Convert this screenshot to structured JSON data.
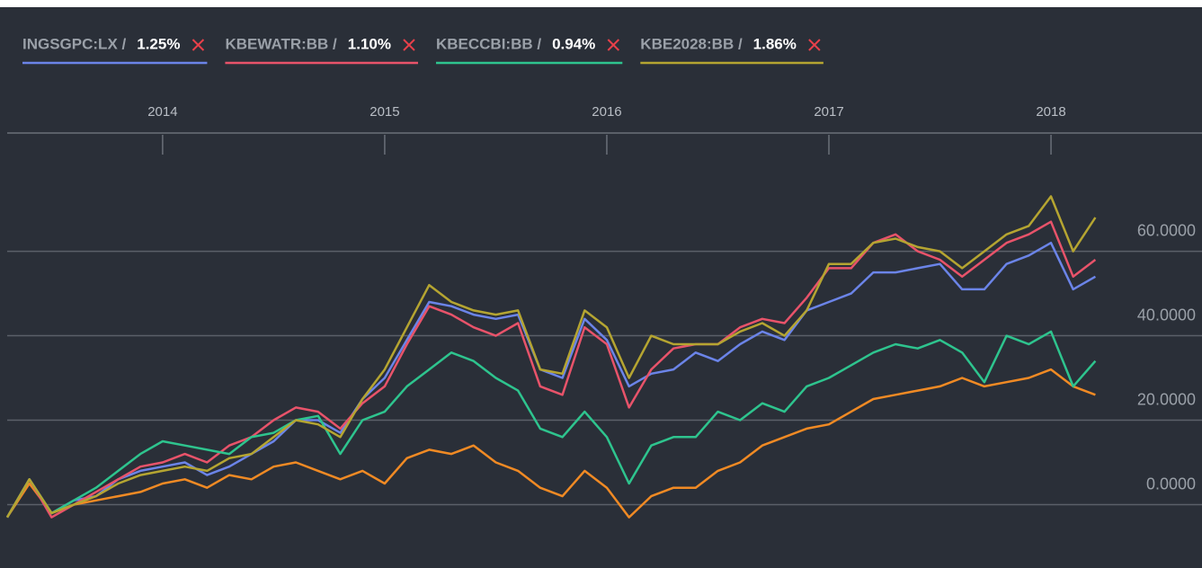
{
  "chart_data": {
    "type": "line",
    "x": [
      2013.3,
      2013.4,
      2013.5,
      2013.6,
      2013.7,
      2013.8,
      2013.9,
      2014.0,
      2014.1,
      2014.2,
      2014.3,
      2014.4,
      2014.5,
      2014.6,
      2014.7,
      2014.8,
      2014.9,
      2015.0,
      2015.1,
      2015.2,
      2015.3,
      2015.4,
      2015.5,
      2015.6,
      2015.7,
      2015.8,
      2015.9,
      2016.0,
      2016.1,
      2016.2,
      2016.3,
      2016.4,
      2016.5,
      2016.6,
      2016.7,
      2016.8,
      2016.9,
      2017.0,
      2017.1,
      2017.2,
      2017.3,
      2017.4,
      2017.5,
      2017.6,
      2017.7,
      2017.8,
      2017.9,
      2018.0,
      2018.1,
      2018.2
    ],
    "xlim": [
      2013.3,
      2018.85
    ],
    "xticks": [
      2014,
      2015,
      2016,
      2017,
      2018
    ],
    "ylim": [
      -15,
      88
    ],
    "yticks": [
      {
        "value": 0,
        "label": "0.0000"
      },
      {
        "value": 20,
        "label": "20.0000"
      },
      {
        "value": 40,
        "label": "40.0000"
      },
      {
        "value": 60,
        "label": "60.0000"
      }
    ],
    "grid": true,
    "series": [
      {
        "name": "INGSGPC:LX /",
        "change": "1.25%",
        "color": "#6b84e8",
        "values": [
          -3,
          6,
          -2,
          1,
          2,
          6,
          8,
          9,
          10,
          7,
          9,
          12,
          15,
          20,
          20,
          17,
          25,
          30,
          39,
          48,
          47,
          45,
          44,
          45,
          32,
          30,
          44,
          39,
          28,
          31,
          32,
          36,
          34,
          38,
          41,
          39,
          46,
          48,
          50,
          55,
          55,
          56,
          57,
          51,
          51,
          57,
          59,
          62,
          51,
          54
        ]
      },
      {
        "name": "KBEWATR:BB /",
        "change": "1.10%",
        "color": "#e8536a",
        "values": [
          -3,
          6,
          -3,
          0,
          3,
          6,
          9,
          10,
          12,
          10,
          14,
          16,
          20,
          23,
          22,
          18,
          24,
          28,
          38,
          47,
          45,
          42,
          40,
          43,
          28,
          26,
          42,
          38,
          23,
          32,
          37,
          38,
          38,
          42,
          44,
          43,
          49,
          56,
          56,
          62,
          64,
          60,
          58,
          54,
          58,
          62,
          64,
          67,
          54,
          58
        ]
      },
      {
        "name": "KBECCBI:BB /",
        "change": "0.94%",
        "color": "#2ec48e",
        "values": [
          -3,
          6,
          -2,
          1,
          4,
          8,
          12,
          15,
          14,
          13,
          12,
          16,
          17,
          20,
          21,
          12,
          20,
          22,
          28,
          32,
          36,
          34,
          30,
          27,
          18,
          16,
          22,
          16,
          5,
          14,
          16,
          16,
          22,
          20,
          24,
          22,
          28,
          30,
          33,
          36,
          38,
          37,
          39,
          36,
          29,
          40,
          38,
          41,
          28,
          34
        ]
      },
      {
        "name": "KBE2028:BB /",
        "change": "1.86%",
        "color": "#b5a531",
        "values": [
          -3,
          6,
          -2,
          0,
          2,
          5,
          7,
          8,
          9,
          8,
          11,
          12,
          16,
          20,
          19,
          16,
          25,
          32,
          42,
          52,
          48,
          46,
          45,
          46,
          32,
          31,
          46,
          42,
          30,
          40,
          38,
          38,
          38,
          41,
          43,
          40,
          46,
          57,
          57,
          62,
          63,
          61,
          60,
          56,
          60,
          64,
          66,
          73,
          60,
          68
        ]
      },
      {
        "color": "#f08a24",
        "values": [
          -3,
          5,
          -2,
          0,
          1,
          2,
          3,
          5,
          6,
          4,
          7,
          6,
          9,
          10,
          8,
          6,
          8,
          5,
          11,
          13,
          12,
          14,
          10,
          8,
          4,
          2,
          8,
          4,
          -3,
          2,
          4,
          4,
          8,
          10,
          14,
          16,
          18,
          19,
          22,
          25,
          26,
          27,
          28,
          30,
          28,
          29,
          30,
          32,
          28,
          26
        ]
      }
    ]
  }
}
